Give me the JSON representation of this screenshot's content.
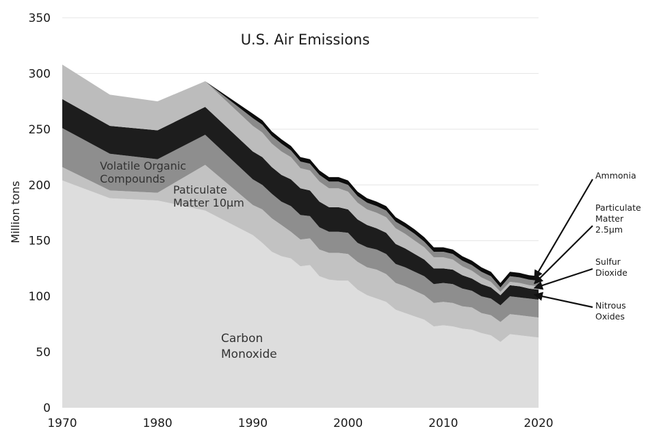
{
  "chart_data": {
    "type": "area",
    "stacked": true,
    "title": "U.S. Air Emissions",
    "ylabel": "Million tons",
    "xlabel": "",
    "xlim": [
      1970,
      2020
    ],
    "ylim": [
      0,
      350
    ],
    "xticks": [
      "1970",
      "1980",
      "1990",
      "2000",
      "2010",
      "2020"
    ],
    "yticks": [
      "0",
      "50",
      "100",
      "150",
      "200",
      "250",
      "300",
      "350"
    ],
    "grid": true,
    "x": [
      1970,
      1975,
      1980,
      1985,
      1990,
      1991,
      1992,
      1993,
      1994,
      1995,
      1996,
      1997,
      1998,
      1999,
      2000,
      2001,
      2002,
      2003,
      2004,
      2005,
      2006,
      2007,
      2008,
      2009,
      2010,
      2011,
      2012,
      2013,
      2014,
      2015,
      2016,
      2017,
      2018,
      2019,
      2020
    ],
    "series": [
      {
        "name": "Carbon Monoxide",
        "label": [
          "Carbon",
          "Monoxide"
        ],
        "color": "#dddddd",
        "values": [
          204,
          188,
          186,
          177,
          155,
          148,
          140,
          136,
          134,
          127,
          128,
          118,
          115,
          114,
          114,
          106,
          101,
          98,
          95,
          88,
          85,
          82,
          79,
          73,
          74,
          73,
          71,
          70,
          67,
          65,
          59,
          66,
          65,
          64,
          63
        ]
      },
      {
        "name": "Paticulate Matter 10µm",
        "label": [
          "Paticulate",
          "Matter 10µm"
        ],
        "color": "#c2c2c2",
        "values": [
          12,
          7,
          7,
          41,
          27,
          30,
          30,
          28,
          24,
          24,
          24,
          24,
          24,
          25,
          24,
          25,
          25,
          26,
          25,
          24,
          24,
          23,
          22,
          21,
          21,
          21,
          20,
          20,
          18,
          18,
          18,
          18,
          18,
          18,
          18
        ]
      },
      {
        "name": "Volatile Organic Compounds",
        "label": [
          "Volatile Organic",
          "Compounds"
        ],
        "color": "#8e8e8e",
        "values": [
          35,
          33,
          30,
          27,
          23,
          22,
          22,
          21,
          23,
          22,
          20,
          20,
          19,
          19,
          19,
          17,
          18,
          18,
          18,
          17,
          17,
          17,
          17,
          17,
          17,
          17,
          16,
          15,
          15,
          15,
          15,
          16,
          16,
          16,
          16
        ]
      },
      {
        "name": "Nitrous Oxides",
        "label": [
          "Nitrous",
          "Oxides"
        ],
        "color": "#1d1d1d",
        "values": [
          26,
          25,
          26,
          25,
          25,
          25,
          24,
          24,
          24,
          24,
          23,
          23,
          22,
          22,
          21,
          21,
          20,
          19,
          19,
          18,
          17,
          16,
          15,
          14,
          13,
          13,
          12,
          11,
          11,
          10,
          9,
          10,
          10,
          9,
          9
        ]
      },
      {
        "name": "Sulfur Dioxide",
        "label": [
          "Sulfur",
          "Dioxide"
        ],
        "color": "#bcbcbc",
        "values": [
          31,
          28,
          26,
          23,
          23,
          22,
          21,
          21,
          20,
          18,
          18,
          18,
          17,
          17,
          16,
          15,
          14,
          14,
          14,
          14,
          13,
          12,
          11,
          10,
          10,
          9,
          8,
          7,
          6,
          5,
          3,
          3,
          3,
          3,
          3
        ]
      },
      {
        "name": "Particulate Matter 2.5µm",
        "label": [
          "Particulate",
          "Matter",
          "2.5µm"
        ],
        "color": "#8a8a8a",
        "values": [
          0,
          0,
          0,
          0,
          7,
          7,
          7,
          7,
          6,
          6,
          6,
          6,
          6,
          6,
          6,
          6,
          6,
          6,
          6,
          6,
          6,
          6,
          5,
          5,
          5,
          5,
          5,
          5,
          5,
          5,
          4,
          5,
          5,
          5,
          5
        ]
      },
      {
        "name": "Ammonia",
        "label": [
          "Ammonia"
        ],
        "color": "#0c0c0c",
        "values": [
          0,
          0,
          0,
          0,
          4,
          4,
          4,
          4,
          4,
          4,
          4,
          4,
          4,
          4,
          4,
          4,
          4,
          4,
          4,
          4,
          4,
          4,
          4,
          4,
          4,
          4,
          4,
          4,
          4,
          4,
          4,
          4,
          4,
          4,
          4
        ]
      }
    ]
  }
}
